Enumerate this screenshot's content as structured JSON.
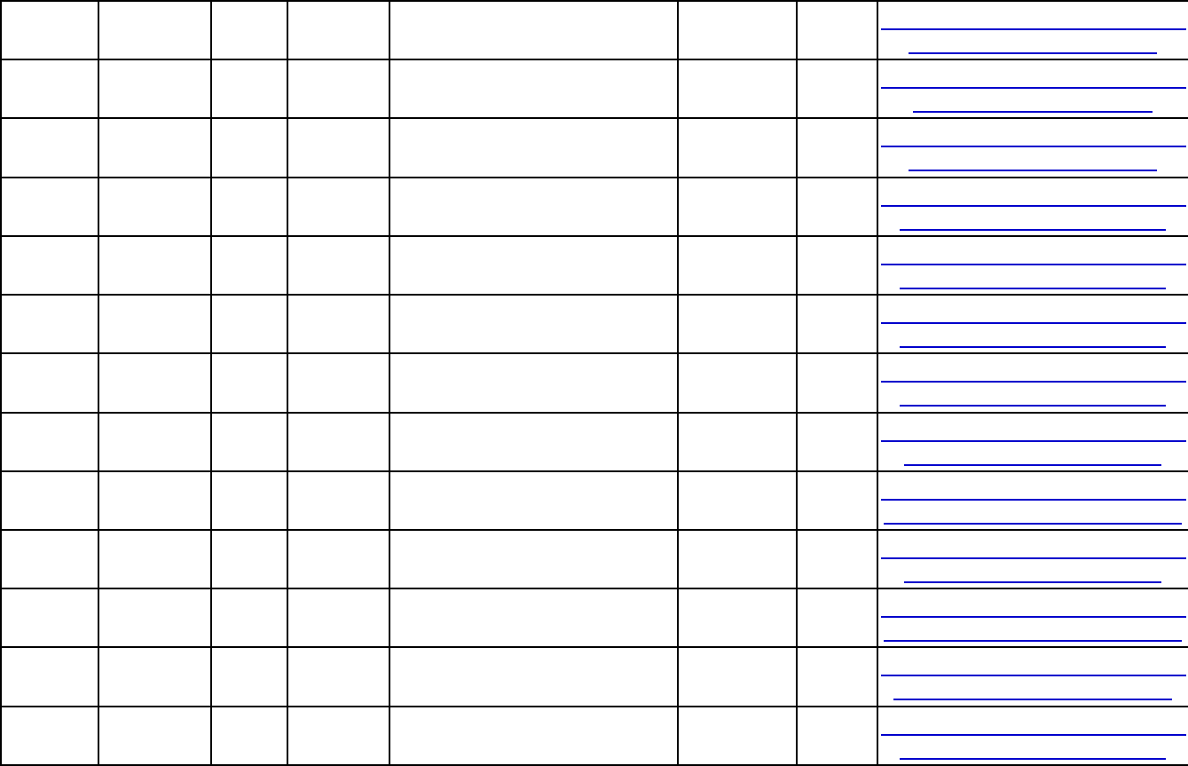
{
  "table": {
    "row_count": 13,
    "column_count": 8,
    "link_color": "#0000cc",
    "link_second_line_fraction": [
      0.82,
      0.79,
      0.82,
      0.88,
      0.88,
      0.88,
      0.88,
      0.85,
      0.98,
      0.85,
      0.98,
      0.92,
      0.88
    ]
  }
}
